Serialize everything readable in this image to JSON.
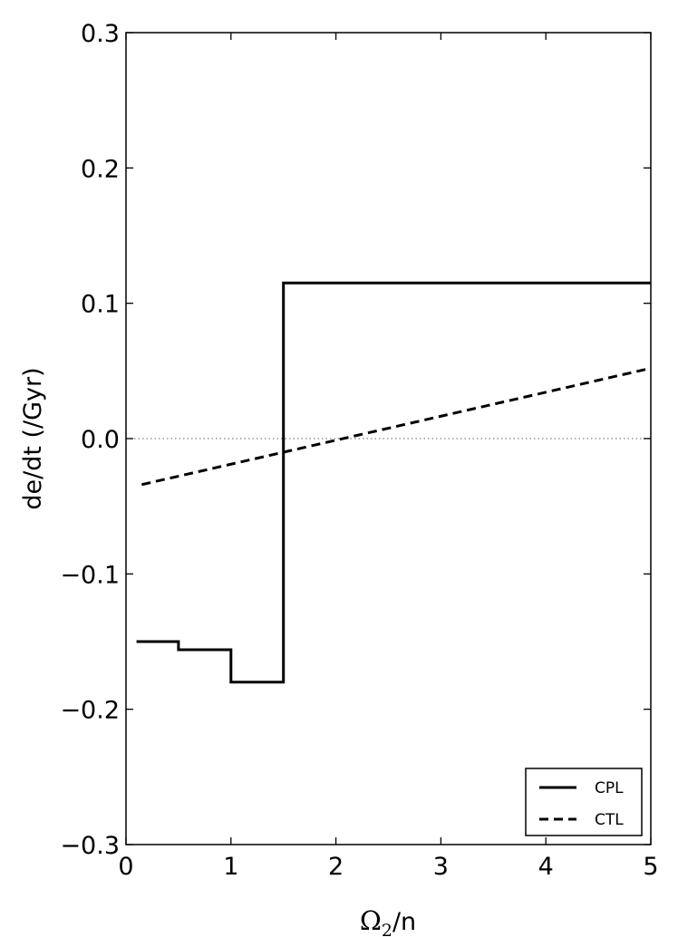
{
  "chart_data": {
    "type": "line",
    "title": "",
    "xlabel": {
      "symbol": "Ω",
      "subscript": "2",
      "suffix": "/n"
    },
    "ylabel": "de/dt (/Gyr)",
    "xlim": [
      0,
      5
    ],
    "ylim": [
      -0.3,
      0.3
    ],
    "x_ticks": [
      0,
      1,
      2,
      3,
      4,
      5
    ],
    "x_tick_labels": [
      "0",
      "1",
      "2",
      "3",
      "4",
      "5"
    ],
    "y_ticks": [
      -0.3,
      -0.2,
      -0.1,
      0.0,
      0.1,
      0.2,
      0.3
    ],
    "y_tick_labels": [
      "−0.3",
      "−0.2",
      "−0.1",
      "0.0",
      "0.1",
      "0.2",
      "0.3"
    ],
    "grid": false,
    "legend_position": "bottom-right",
    "reference_line": {
      "y": 0.0,
      "style": "dotted",
      "color": "#808080"
    },
    "series": [
      {
        "name": "CPL",
        "style": "solid",
        "color": "#000000",
        "x": [
          0.1,
          0.5,
          0.5,
          1.0,
          1.0,
          1.5,
          1.5,
          5.0
        ],
        "y": [
          -0.15,
          -0.15,
          -0.156,
          -0.156,
          -0.18,
          -0.18,
          0.115,
          0.115
        ]
      },
      {
        "name": "CTL",
        "style": "dashed",
        "color": "#000000",
        "x": [
          0.15,
          5.0
        ],
        "y": [
          -0.034,
          0.052
        ]
      }
    ]
  }
}
